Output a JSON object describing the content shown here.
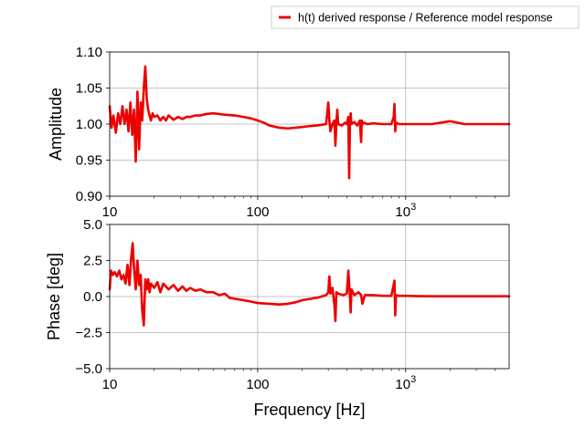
{
  "legend": {
    "label": "h(t) derived response / Reference model response",
    "placement": "top-right"
  },
  "colors": {
    "series": "#ee0000",
    "grid": "#b0b0b0"
  },
  "chart_data": [
    {
      "type": "line",
      "xscale": "log",
      "xlim": [
        10,
        5000
      ],
      "ylim": [
        0.9,
        1.1
      ],
      "ylabel": "Amplitude",
      "xlabel": "",
      "grid": true,
      "yticks": [
        "0.90",
        "0.95",
        "1.00",
        "1.05",
        "1.10"
      ],
      "ytick_values": [
        0.9,
        0.95,
        1.0,
        1.05,
        1.1
      ],
      "xticks": [
        "10",
        "100",
        "10^3"
      ],
      "xtick_values": [
        10,
        100,
        1000
      ],
      "series": [
        {
          "name": "h(t) derived response / Reference model response",
          "x": [
            10,
            10.3,
            10.6,
            11,
            11.4,
            11.8,
            12.2,
            12.6,
            13,
            13.4,
            13.8,
            14.2,
            14.6,
            15,
            15.4,
            15.8,
            16.2,
            16.6,
            17,
            17.4,
            17.8,
            18.2,
            18.6,
            19,
            19.5,
            20,
            21,
            22,
            23,
            24,
            25,
            27,
            29,
            31,
            33,
            35,
            38,
            41,
            45,
            50,
            55,
            60,
            70,
            80,
            90,
            100,
            110,
            120,
            140,
            160,
            180,
            200,
            220,
            250,
            270,
            290,
            295,
            300,
            305,
            310,
            320,
            330,
            335,
            340,
            345,
            350,
            370,
            390,
            400,
            410,
            415,
            420,
            425,
            430,
            450,
            470,
            490,
            500,
            505,
            510,
            520,
            550,
            600,
            700,
            800,
            830,
            840,
            850,
            860,
            900,
            1000,
            1200,
            1500,
            2000,
            2500,
            3000,
            4000,
            5000
          ],
          "y": [
            1.025,
            0.995,
            1.012,
            0.988,
            1.015,
            1.0,
            1.025,
            1.0,
            1.02,
            0.99,
            1.03,
            0.985,
            1.02,
            0.948,
            1.045,
            0.965,
            1.03,
            1.005,
            1.05,
            1.08,
            1.035,
            1.02,
            1.012,
            1.005,
            1.015,
            1.01,
            1.012,
            1.005,
            1.01,
            1.005,
            1.012,
            1.006,
            1.01,
            1.007,
            1.01,
            1.01,
            1.012,
            1.012,
            1.014,
            1.015,
            1.014,
            1.013,
            1.012,
            1.01,
            1.008,
            1.005,
            1.002,
            0.998,
            0.995,
            0.994,
            0.995,
            0.996,
            0.997,
            0.998,
            0.999,
            1.0,
            1.015,
            1.03,
            1.005,
            0.99,
            1.0,
            1.005,
            0.97,
            1.0,
            1.02,
            1.0,
            0.998,
            1.002,
            1.0,
            1.01,
            0.925,
            1.0,
            1.015,
            1.0,
            1.003,
            0.998,
            1.005,
            0.975,
            1.005,
            1.0,
            1.002,
            1.0,
            1.001,
            1.0,
            1.0,
            1.01,
            1.028,
            0.99,
            1.002,
            1.0,
            1.0,
            1.0,
            1.0,
            1.004,
            1.0,
            1.0,
            1.0,
            1.0
          ]
        }
      ]
    },
    {
      "type": "line",
      "xscale": "log",
      "xlim": [
        10,
        5000
      ],
      "ylim": [
        -5.0,
        5.0
      ],
      "ylabel": "Phase [deg]",
      "xlabel": "Frequency [Hz]",
      "grid": true,
      "yticks": [
        "−5.0",
        "−2.5",
        "0.0",
        "2.5",
        "5.0"
      ],
      "ytick_values": [
        -5.0,
        -2.5,
        0.0,
        2.5,
        5.0
      ],
      "xticks": [
        "10",
        "100",
        "10^3"
      ],
      "xtick_values": [
        10,
        100,
        1000
      ],
      "series": [
        {
          "name": "h(t) derived response / Reference model response",
          "x": [
            10,
            10.2,
            10.5,
            10.8,
            11.2,
            11.6,
            12,
            12.4,
            12.8,
            13.2,
            13.6,
            14,
            14.3,
            14.6,
            15,
            15.4,
            15.8,
            16.2,
            16.6,
            17,
            17.4,
            17.8,
            18.2,
            18.6,
            19,
            20,
            21,
            22,
            23,
            25,
            27,
            29,
            31,
            33,
            35,
            38,
            41,
            45,
            50,
            55,
            60,
            65,
            70,
            80,
            90,
            100,
            120,
            140,
            160,
            180,
            200,
            230,
            260,
            290,
            300,
            305,
            310,
            320,
            330,
            335,
            340,
            350,
            380,
            400,
            410,
            420,
            425,
            430,
            450,
            480,
            500,
            510,
            530,
            600,
            700,
            800,
            840,
            850,
            860,
            900,
            1000,
            1200,
            1500,
            2000,
            2500,
            3000,
            4000,
            5000
          ],
          "y": [
            0.5,
            1.8,
            1.5,
            1.7,
            1.4,
            1.8,
            1.2,
            1.5,
            0.9,
            2.2,
            0.8,
            2.8,
            3.7,
            2.0,
            0.5,
            2.5,
            0.8,
            1.5,
            -1.0,
            -2.0,
            1.2,
            0.5,
            1.2,
            0.3,
            0.9,
            0.6,
            1.0,
            0.3,
            0.9,
            0.5,
            0.8,
            0.4,
            0.7,
            0.4,
            0.6,
            0.4,
            0.5,
            0.3,
            0.3,
            0.1,
            0.2,
            -0.1,
            -0.15,
            -0.25,
            -0.35,
            -0.45,
            -0.5,
            -0.55,
            -0.5,
            -0.4,
            -0.25,
            -0.15,
            -0.05,
            0.1,
            0.3,
            1.4,
            0.2,
            0.6,
            -0.6,
            -1.7,
            0.3,
            0.2,
            0.1,
            0.2,
            1.8,
            0.0,
            -1.1,
            0.5,
            0.1,
            0.3,
            0.1,
            -0.5,
            0.1,
            0.1,
            0.05,
            0.05,
            1.1,
            -1.3,
            0.1,
            0.05,
            0.05,
            0.03,
            0.02,
            0.02,
            0.02,
            0.02,
            0.02,
            0.02
          ]
        }
      ]
    }
  ]
}
